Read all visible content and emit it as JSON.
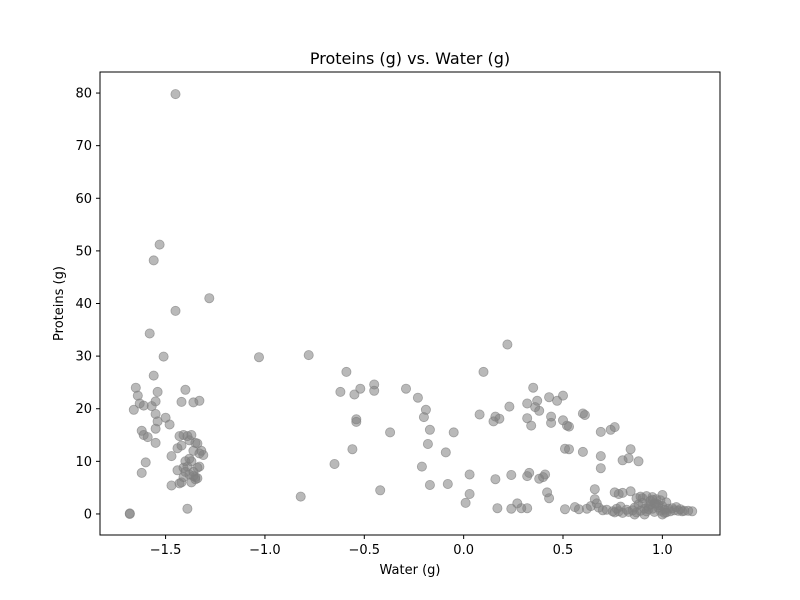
{
  "chart_data": {
    "type": "scatter",
    "title": "Proteins (g) vs. Water (g)",
    "xlabel": "Water (g)",
    "ylabel": "Proteins (g)",
    "xlim": [
      -1.83,
      1.29
    ],
    "ylim": [
      -4,
      84
    ],
    "xticks": [
      -1.5,
      -1.0,
      -0.5,
      0.0,
      0.5,
      1.0
    ],
    "xtick_labels": [
      "−1.5",
      "−1.0",
      "−0.5",
      "0.0",
      "0.5",
      "1.0"
    ],
    "yticks": [
      0,
      10,
      20,
      30,
      40,
      50,
      60,
      70,
      80
    ],
    "ytick_labels": [
      "0",
      "10",
      "20",
      "30",
      "40",
      "50",
      "60",
      "70",
      "80"
    ],
    "grid": false,
    "marker_color": "#808080",
    "marker_alpha": 0.55,
    "points": [
      [
        -1.68,
        0.0
      ],
      [
        -1.68,
        0.1
      ],
      [
        -1.65,
        24.0
      ],
      [
        -1.64,
        22.5
      ],
      [
        -1.63,
        21.0
      ],
      [
        -1.66,
        19.8
      ],
      [
        -1.61,
        20.6
      ],
      [
        -1.62,
        15.8
      ],
      [
        -1.61,
        15.0
      ],
      [
        -1.59,
        14.6
      ],
      [
        -1.62,
        7.8
      ],
      [
        -1.6,
        9.8
      ],
      [
        -1.58,
        34.3
      ],
      [
        -1.56,
        48.2
      ],
      [
        -1.53,
        51.2
      ],
      [
        -1.45,
        79.8
      ],
      [
        -1.45,
        38.6
      ],
      [
        -1.28,
        41.0
      ],
      [
        -1.56,
        26.3
      ],
      [
        -1.55,
        21.4
      ],
      [
        -1.57,
        20.5
      ],
      [
        -1.54,
        23.2
      ],
      [
        -1.55,
        19.0
      ],
      [
        -1.54,
        17.6
      ],
      [
        -1.55,
        16.2
      ],
      [
        -1.55,
        13.5
      ],
      [
        -1.51,
        29.9
      ],
      [
        -1.5,
        18.3
      ],
      [
        -1.48,
        17.0
      ],
      [
        -1.47,
        11.0
      ],
      [
        -1.44,
        12.5
      ],
      [
        -1.43,
        14.8
      ],
      [
        -1.42,
        21.3
      ],
      [
        -1.4,
        23.6
      ],
      [
        -1.42,
        13.0
      ],
      [
        -1.41,
        15.0
      ],
      [
        -1.39,
        14.8
      ],
      [
        -1.38,
        14.0
      ],
      [
        -1.37,
        15.0
      ],
      [
        -1.36,
        12.0
      ],
      [
        -1.35,
        13.5
      ],
      [
        -1.34,
        13.4
      ],
      [
        -1.33,
        21.5
      ],
      [
        -1.36,
        21.2
      ],
      [
        -1.4,
        8.0
      ],
      [
        -1.41,
        7.0
      ],
      [
        -1.42,
        6.0
      ],
      [
        -1.4,
        10.0
      ],
      [
        -1.39,
        9.0
      ],
      [
        -1.38,
        10.5
      ],
      [
        -1.37,
        10.0
      ],
      [
        -1.36,
        8.0
      ],
      [
        -1.35,
        7.0
      ],
      [
        -1.34,
        8.8
      ],
      [
        -1.33,
        9.0
      ],
      [
        -1.33,
        11.5
      ],
      [
        -1.32,
        12.0
      ],
      [
        -1.31,
        11.2
      ],
      [
        -1.37,
        6.0
      ],
      [
        -1.38,
        7.5
      ],
      [
        -1.44,
        8.3
      ],
      [
        -1.47,
        5.4
      ],
      [
        -1.43,
        5.8
      ],
      [
        -1.39,
        1.0
      ],
      [
        -1.34,
        6.8
      ],
      [
        -1.35,
        6.6
      ],
      [
        -1.36,
        7.2
      ],
      [
        -1.41,
        8.8
      ],
      [
        -1.03,
        29.8
      ],
      [
        -0.78,
        30.2
      ],
      [
        -0.82,
        3.3
      ],
      [
        -0.65,
        9.5
      ],
      [
        -0.59,
        27.0
      ],
      [
        -0.62,
        23.2
      ],
      [
        -0.55,
        22.7
      ],
      [
        -0.52,
        23.8
      ],
      [
        -0.54,
        18.0
      ],
      [
        -0.54,
        17.5
      ],
      [
        -0.56,
        12.3
      ],
      [
        -0.45,
        24.6
      ],
      [
        -0.45,
        23.4
      ],
      [
        -0.37,
        15.5
      ],
      [
        -0.42,
        4.5
      ],
      [
        -0.29,
        23.8
      ],
      [
        -0.23,
        22.1
      ],
      [
        -0.2,
        18.4
      ],
      [
        -0.19,
        19.8
      ],
      [
        -0.18,
        13.3
      ],
      [
        -0.17,
        16.0
      ],
      [
        -0.17,
        5.5
      ],
      [
        -0.21,
        9.0
      ],
      [
        -0.09,
        11.7
      ],
      [
        -0.08,
        5.7
      ],
      [
        -0.05,
        15.5
      ],
      [
        0.01,
        2.1
      ],
      [
        0.03,
        3.8
      ],
      [
        0.03,
        7.5
      ],
      [
        0.08,
        18.9
      ],
      [
        0.1,
        27.0
      ],
      [
        0.15,
        17.6
      ],
      [
        0.16,
        18.5
      ],
      [
        0.18,
        18.1
      ],
      [
        0.16,
        6.6
      ],
      [
        0.17,
        1.1
      ],
      [
        0.22,
        32.2
      ],
      [
        0.23,
        20.4
      ],
      [
        0.24,
        7.4
      ],
      [
        0.24,
        1.0
      ],
      [
        0.27,
        2.0
      ],
      [
        0.29,
        1.1
      ],
      [
        0.32,
        1.1
      ],
      [
        0.32,
        7.2
      ],
      [
        0.33,
        7.8
      ],
      [
        0.32,
        21.0
      ],
      [
        0.32,
        18.2
      ],
      [
        0.35,
        24.0
      ],
      [
        0.36,
        20.3
      ],
      [
        0.38,
        19.6
      ],
      [
        0.37,
        21.5
      ],
      [
        0.34,
        16.8
      ],
      [
        0.38,
        6.7
      ],
      [
        0.4,
        7.0
      ],
      [
        0.41,
        7.5
      ],
      [
        0.42,
        4.1
      ],
      [
        0.43,
        3.0
      ],
      [
        0.43,
        22.2
      ],
      [
        0.44,
        18.5
      ],
      [
        0.44,
        17.3
      ],
      [
        0.47,
        21.5
      ],
      [
        0.5,
        22.5
      ],
      [
        0.5,
        17.8
      ],
      [
        0.52,
        16.8
      ],
      [
        0.53,
        16.6
      ],
      [
        0.51,
        12.4
      ],
      [
        0.53,
        12.3
      ],
      [
        0.51,
        0.9
      ],
      [
        0.56,
        1.3
      ],
      [
        0.6,
        19.1
      ],
      [
        0.61,
        18.8
      ],
      [
        0.6,
        11.8
      ],
      [
        0.62,
        1.0
      ],
      [
        0.66,
        4.7
      ],
      [
        0.66,
        2.8
      ],
      [
        0.67,
        2.0
      ],
      [
        0.69,
        15.6
      ],
      [
        0.69,
        11.0
      ],
      [
        0.69,
        8.7
      ],
      [
        0.72,
        0.8
      ],
      [
        0.74,
        16.0
      ],
      [
        0.76,
        16.5
      ],
      [
        0.76,
        4.1
      ],
      [
        0.78,
        3.8
      ],
      [
        0.8,
        4.0
      ],
      [
        0.8,
        10.2
      ],
      [
        0.83,
        10.6
      ],
      [
        0.84,
        12.3
      ],
      [
        0.84,
        4.3
      ],
      [
        0.88,
        10.0
      ],
      [
        0.87,
        3.0
      ],
      [
        0.89,
        3.3
      ],
      [
        0.9,
        3.0
      ],
      [
        0.92,
        3.4
      ],
      [
        0.95,
        3.2
      ],
      [
        0.97,
        2.8
      ],
      [
        1.0,
        3.6
      ],
      [
        0.91,
        1.0
      ],
      [
        0.92,
        0.5
      ],
      [
        0.93,
        1.5
      ],
      [
        0.94,
        1.8
      ],
      [
        0.95,
        1.0
      ],
      [
        0.96,
        0.4
      ],
      [
        0.97,
        2.0
      ],
      [
        0.98,
        1.2
      ],
      [
        0.99,
        0.6
      ],
      [
        1.0,
        1.5
      ],
      [
        1.01,
        0.8
      ],
      [
        1.02,
        2.2
      ],
      [
        1.03,
        1.0
      ],
      [
        1.04,
        0.5
      ],
      [
        1.05,
        1.1
      ],
      [
        1.06,
        0.7
      ],
      [
        1.07,
        1.3
      ],
      [
        1.08,
        0.6
      ],
      [
        1.09,
        0.9
      ],
      [
        1.1,
        0.5
      ],
      [
        1.11,
        0.6
      ],
      [
        1.13,
        0.6
      ],
      [
        1.15,
        0.5
      ],
      [
        0.76,
        0.3
      ],
      [
        0.77,
        1.0
      ],
      [
        0.78,
        0.5
      ],
      [
        0.79,
        1.4
      ],
      [
        0.8,
        0.2
      ],
      [
        0.82,
        0.8
      ],
      [
        0.83,
        0.4
      ],
      [
        0.85,
        0.7
      ],
      [
        0.86,
        1.2
      ],
      [
        0.87,
        0.3
      ],
      [
        0.88,
        1.8
      ],
      [
        0.89,
        0.6
      ],
      [
        0.9,
        2.1
      ],
      [
        1.0,
        -0.1
      ],
      [
        0.99,
        2.6
      ],
      [
        0.94,
        2.5
      ],
      [
        0.96,
        2.0
      ],
      [
        0.98,
        1.7
      ],
      [
        1.01,
        0.2
      ],
      [
        0.75,
        0.5
      ],
      [
        0.7,
        0.7
      ],
      [
        0.68,
        1.2
      ],
      [
        0.64,
        1.5
      ],
      [
        0.58,
        0.9
      ],
      [
        0.86,
        -0.1
      ],
      [
        0.91,
        -0.1
      ],
      [
        0.93,
        0.9
      ],
      [
        0.95,
        2.7
      ],
      [
        1.02,
        0.3
      ]
    ]
  }
}
